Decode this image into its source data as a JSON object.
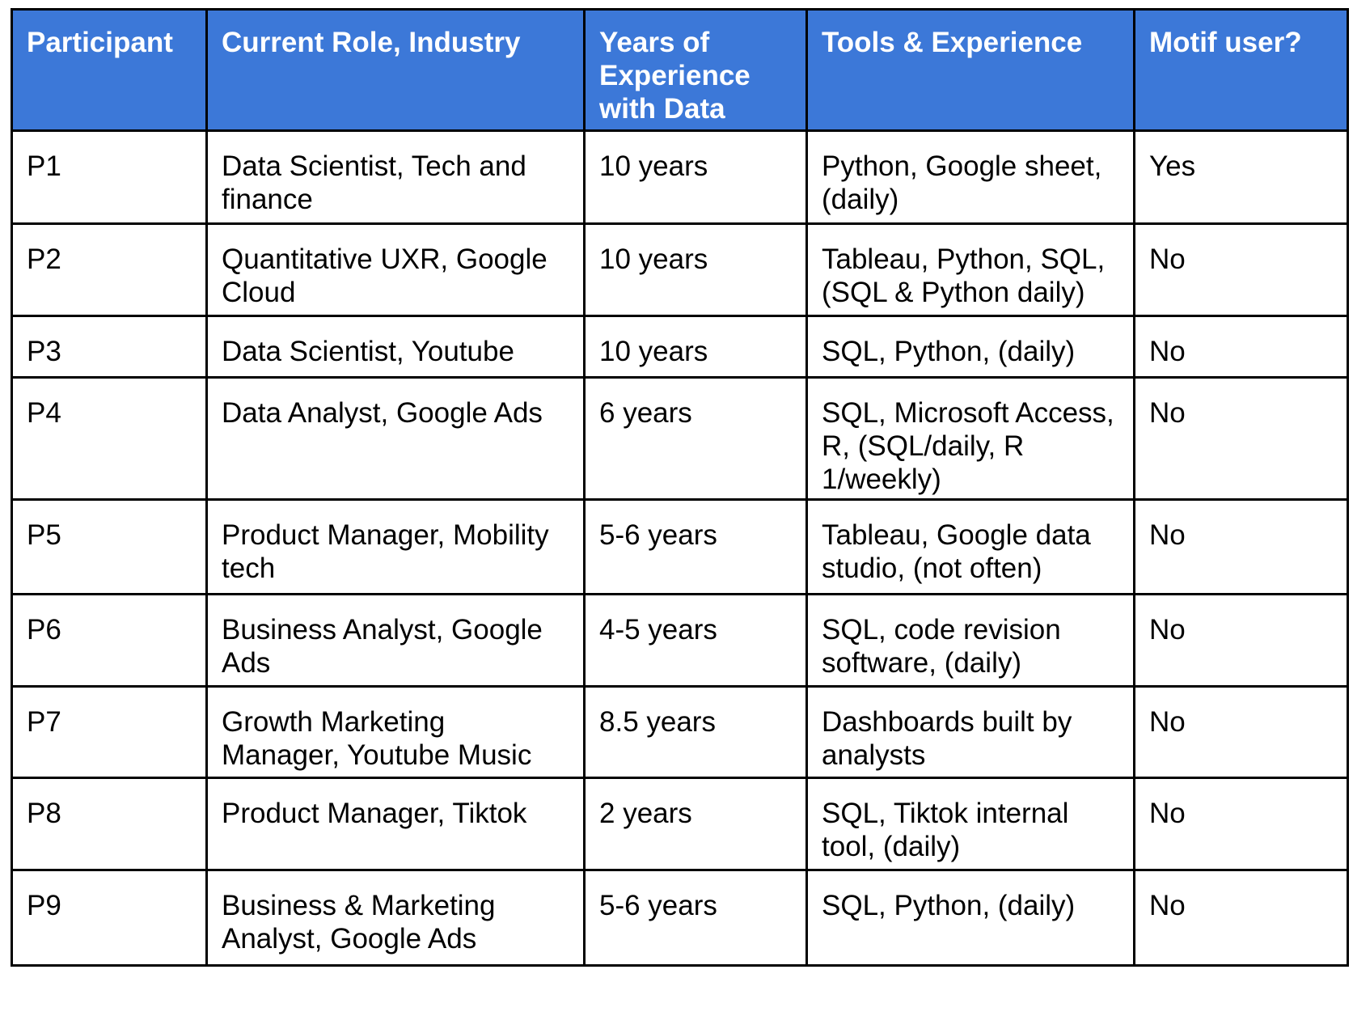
{
  "headers": [
    "Participant",
    "Current Role, Industry",
    "Years of Experience with Data",
    "Tools & Experience",
    "Motif user?"
  ],
  "rows": [
    [
      "P1",
      "Data Scientist, Tech and finance",
      "10 years",
      "Python, Google sheet, (daily)",
      "Yes"
    ],
    [
      "P2",
      "Quantitative UXR, Google Cloud",
      "10 years",
      "Tableau, Python, SQL, (SQL & Python daily)",
      "No"
    ],
    [
      "P3",
      "Data Scientist, Youtube",
      "10 years",
      "SQL, Python, (daily)",
      "No"
    ],
    [
      "P4",
      "Data Analyst, Google Ads",
      "6 years",
      "SQL, Microsoft Access, R, (SQL/daily, R 1/weekly)",
      "No"
    ],
    [
      "P5",
      "Product Manager, Mobility tech",
      "5-6 years",
      "Tableau, Google data studio, (not often)",
      "No"
    ],
    [
      "P6",
      "Business Analyst, Google Ads",
      "4-5 years",
      "SQL, code revision software, (daily)",
      "No"
    ],
    [
      "P7",
      "Growth Marketing Manager, Youtube Music",
      "8.5 years",
      "Dashboards built by analysts",
      "No"
    ],
    [
      "P8",
      "Product Manager, Tiktok",
      "2 years",
      "SQL, Tiktok internal tool, (daily)",
      "No"
    ],
    [
      "P9",
      "Business & Marketing Analyst, Google Ads",
      "5-6 years",
      "SQL, Python, (daily)",
      "No"
    ]
  ],
  "colors": {
    "header_bg": "#3c78d8",
    "header_text": "#ffffff",
    "border": "#000000",
    "cell_text": "#000000"
  }
}
